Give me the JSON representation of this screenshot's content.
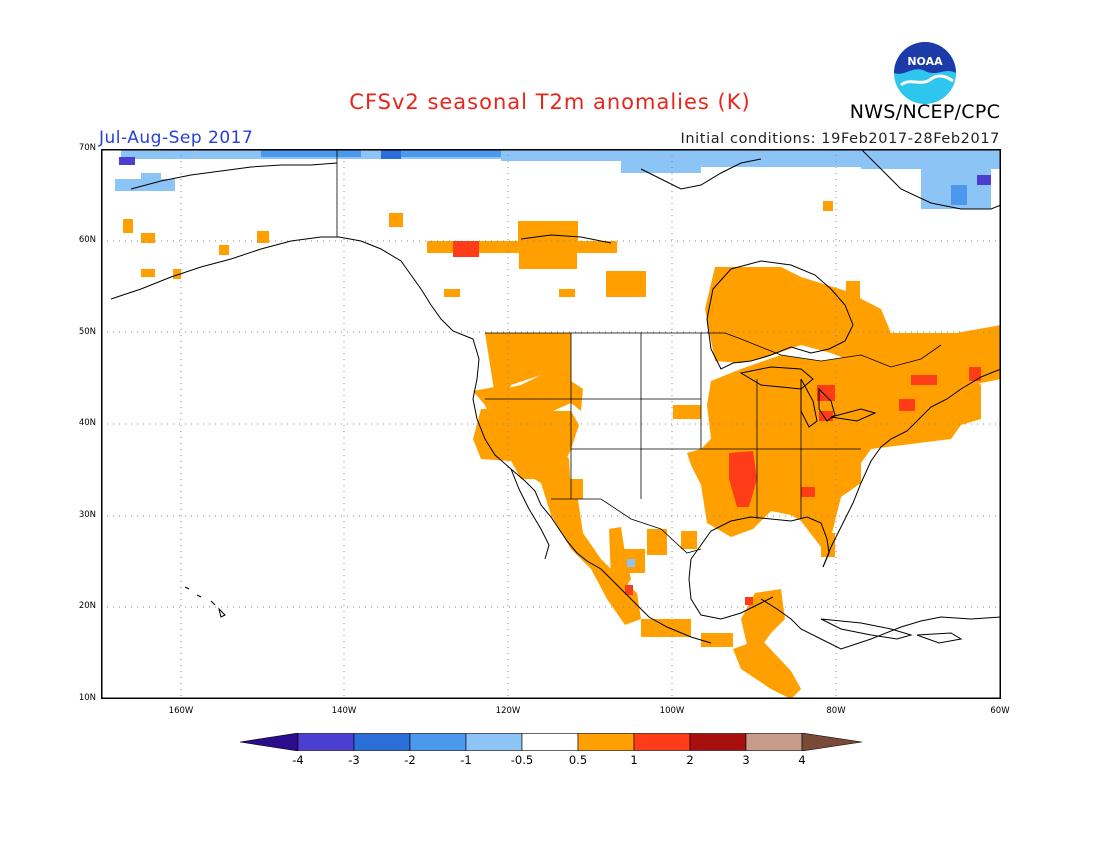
{
  "header": {
    "title": "CFSv2 seasonal T2m anomalies (K)",
    "season": "Jul-Aug-Sep 2017",
    "initial_conditions": "Initial conditions: 19Feb2017-28Feb2017",
    "agency": "NWS/NCEP/CPC",
    "logo_text": "NOAA"
  },
  "map": {
    "projection": "cylindrical",
    "lon_range": [
      -172,
      -60
    ],
    "lat_range": [
      10,
      70
    ],
    "lat_labels": [
      "70N",
      "60N",
      "50N",
      "40N",
      "30N",
      "20N",
      "10N"
    ],
    "lon_labels": [
      "160W",
      "140W",
      "120W",
      "100W",
      "80W",
      "60W"
    ],
    "grid": "dotted"
  },
  "colorbar": {
    "labels": [
      "-4",
      "-3",
      "-2",
      "-1",
      "-0.5",
      "0.5",
      "1",
      "2",
      "3",
      "4"
    ],
    "colors": [
      "#2a0c8c",
      "#4a3fd0",
      "#2a6fd8",
      "#4a99ec",
      "#8cc4f6",
      "#ffffff",
      "#ffa000",
      "#ff3c18",
      "#a81010",
      "#c89c8a",
      "#7a4a38"
    ]
  }
}
